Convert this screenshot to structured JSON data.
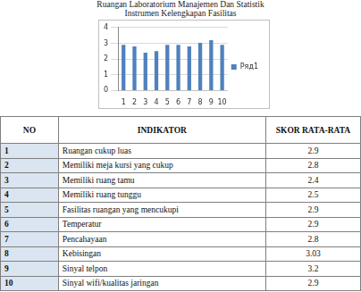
{
  "chart_data": {
    "type": "bar",
    "title": [
      "Ruangan Laboratorium Manajemen Dan Statistik",
      "Instrumen Kelengkapan Fasilitas"
    ],
    "categories": [
      "1",
      "2",
      "3",
      "4",
      "5",
      "6",
      "7",
      "8",
      "9",
      "10"
    ],
    "series": [
      {
        "name": "Ряд1",
        "color": "#4f81bd",
        "values": [
          2.9,
          2.8,
          2.4,
          2.5,
          2.9,
          2.9,
          2.8,
          3.03,
          3.2,
          2.9
        ]
      }
    ],
    "ylim": [
      0,
      4
    ],
    "yticks": [
      0,
      1,
      2,
      3,
      4
    ],
    "grid": true,
    "legend": "right"
  },
  "table": {
    "columns": [
      "NO",
      "INDIKATOR",
      "SKOR RATA-RATA"
    ],
    "rows": [
      [
        1,
        "Ruangan cukup luas",
        2.9
      ],
      [
        2,
        "Memiliki meja kursi yang cukup",
        2.8
      ],
      [
        3,
        "Memiliki ruang tamu",
        2.4
      ],
      [
        4,
        "Memiliki ruang tunggu",
        2.5
      ],
      [
        5,
        "Fasilitas ruangan yang mencukupi",
        2.9
      ],
      [
        6,
        "Temperatur",
        2.9
      ],
      [
        7,
        "Pencahayaan",
        2.8
      ],
      [
        8,
        "Kebisingan",
        3.03
      ],
      [
        9,
        "Sinyal telpon",
        3.2
      ],
      [
        10,
        "Sinyal wifi/kualitas jaringan",
        2.9
      ]
    ]
  }
}
